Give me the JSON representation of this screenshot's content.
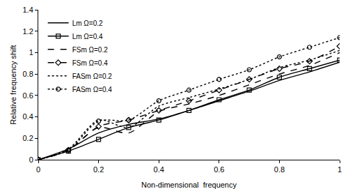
{
  "chart_data": {
    "type": "line",
    "x_label": "Non-dimensional  frequency",
    "y_label": "Relative frequency shift",
    "x": [
      0,
      0.1,
      0.2,
      0.3,
      0.4,
      0.5,
      0.6,
      0.7,
      0.8,
      0.9,
      1.0
    ],
    "series": [
      {
        "name": "Lm Ω=0.2",
        "color": "#000000",
        "line_style": "solid",
        "marker": "none",
        "values": [
          0,
          0.1,
          0.25,
          0.33,
          0.38,
          0.46,
          0.55,
          0.64,
          0.74,
          0.82,
          0.91
        ]
      },
      {
        "name": "Lm Ω=0.4",
        "color": "#000000",
        "line_style": "solid",
        "marker": "square-open",
        "values": [
          0,
          0.08,
          0.19,
          0.3,
          0.37,
          0.46,
          0.56,
          0.65,
          0.77,
          0.85,
          0.93
        ]
      },
      {
        "name": "FSm Ω=0.2",
        "color": "#000000",
        "line_style": "dash",
        "marker": "none",
        "values": [
          0,
          0.09,
          0.3,
          0.25,
          0.45,
          0.52,
          0.6,
          0.7,
          0.8,
          0.88,
          1.0
        ]
      },
      {
        "name": "FSm Ω=0.4",
        "color": "#000000",
        "line_style": "dash",
        "marker": "diamond-open",
        "values": [
          0,
          0.09,
          0.31,
          0.37,
          0.46,
          0.55,
          0.65,
          0.75,
          0.85,
          0.92,
          1.06
        ]
      },
      {
        "name": "FASm Ω=0.2",
        "color": "#000000",
        "line_style": "dot",
        "marker": "none",
        "values": [
          0,
          0.1,
          0.37,
          0.3,
          0.5,
          0.58,
          0.66,
          0.75,
          0.86,
          0.93,
          1.02
        ]
      },
      {
        "name": "FASm Ω=0.4",
        "color": "#000000",
        "line_style": "dot",
        "marker": "circle-open",
        "values": [
          0,
          0.09,
          0.36,
          0.37,
          0.55,
          0.65,
          0.75,
          0.84,
          0.96,
          1.05,
          1.14
        ]
      }
    ],
    "xlim": [
      0,
      1
    ],
    "xticks": [
      0,
      0.2,
      0.4,
      0.6,
      0.8,
      1
    ],
    "ylim": [
      0,
      1.4
    ],
    "yticks": [
      0,
      0.2,
      0.4,
      0.6,
      0.8,
      1,
      1.2,
      1.4
    ],
    "grid": false,
    "legend": "upper left"
  }
}
